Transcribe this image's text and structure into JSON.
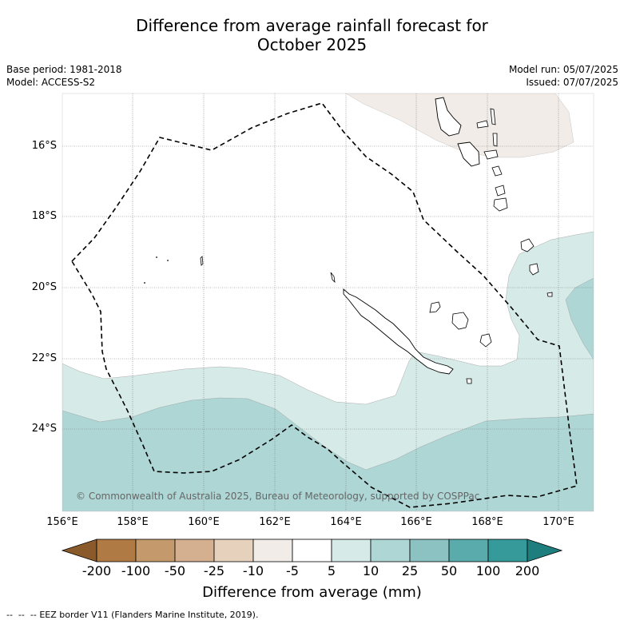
{
  "header": {
    "title_line1": "Difference from average rainfall forecast for",
    "title_line2": "October 2025",
    "base_period": "Base period: 1981-2018",
    "model": "Model: ACCESS-S2",
    "model_run": "Model run: 05/07/2025",
    "issued": "Issued: 07/07/2025"
  },
  "map": {
    "region": "New Caledonia",
    "longitude_labels": [
      "156°E",
      "158°E",
      "160°E",
      "162°E",
      "164°E",
      "166°E",
      "168°E",
      "170°E"
    ],
    "latitude_labels": [
      "16°S",
      "18°S",
      "20°S",
      "22°S",
      "24°S"
    ],
    "copyright": "© Commonwealth of Australia 2025, Bureau of Meteorology, supported by COSPPac",
    "eez_border": "EEZ border V11 (Flanders Marine Institute, 2019)."
  },
  "colorbar": {
    "tick_labels": [
      "-200",
      "-100",
      "-50",
      "-25",
      "-10",
      "-5",
      "5",
      "10",
      "25",
      "50",
      "100",
      "200"
    ],
    "colors": [
      "#8b5a2b",
      "#b07a45",
      "#c49a6c",
      "#d5b090",
      "#e6d1bd",
      "#f1ece7",
      "#ffffff",
      "#d6eae8",
      "#add6d5",
      "#8cc3c2",
      "#5aacac",
      "#36999a",
      "#1e7e7e"
    ],
    "title": "Difference from average (mm)"
  }
}
